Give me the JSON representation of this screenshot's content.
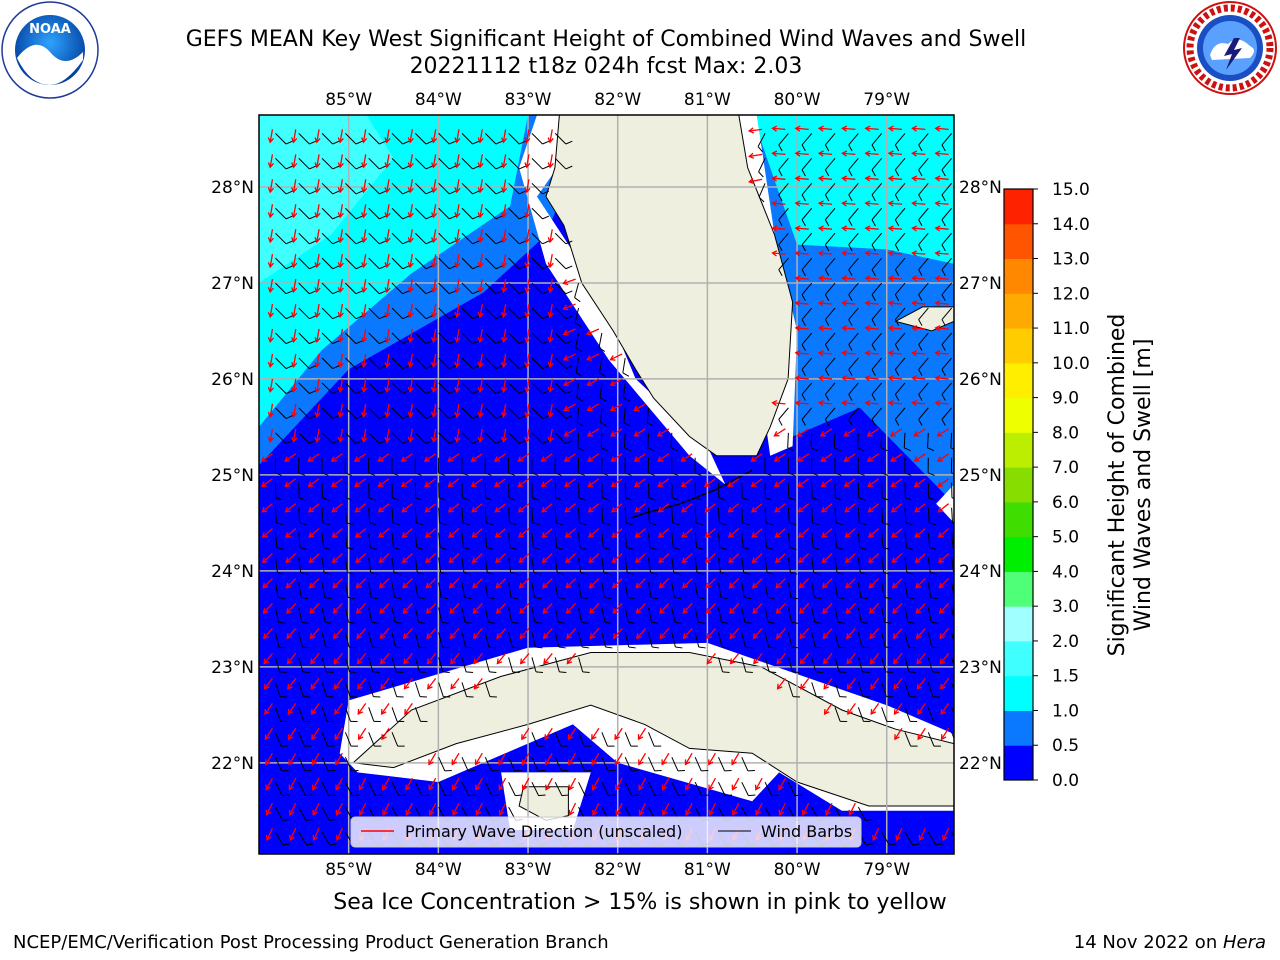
{
  "header": {
    "title_line1": "GEFS MEAN Key West Significant Height of Combined Wind Waves and Swell",
    "title_line2": "20221112 t18z 024h fcst   Max: 2.03",
    "left_logo_text": "NOAA",
    "right_logo_text": "NATIONAL WEATHER SERVICE"
  },
  "chart_data": {
    "type": "heatmap",
    "title": "GEFS MEAN Key West Significant Height of Combined Wind Waves and Swell",
    "subtitle": "20221112 t18z 024h fcst   Max: 2.03",
    "max_value": 2.03,
    "x_ticks": [
      "85°W",
      "84°W",
      "83°W",
      "82°W",
      "81°W",
      "80°W",
      "79°W"
    ],
    "y_ticks": [
      "28°N",
      "27°N",
      "26°N",
      "25°N",
      "24°N",
      "23°N",
      "22°N"
    ],
    "xlim": [
      -86.0,
      -78.25
    ],
    "ylim": [
      21.05,
      28.75
    ],
    "grid": true,
    "colorbar": {
      "label": "Significant Height of Combined Wind Waves and Swell [m]",
      "tick_labels": [
        "0.0",
        "0.5",
        "1.0",
        "1.5",
        "2.0",
        "3.0",
        "4.0",
        "5.0",
        "6.0",
        "7.0",
        "8.0",
        "9.0",
        "10.0",
        "11.0",
        "12.0",
        "13.0",
        "14.0",
        "15.0"
      ],
      "bin_colors": [
        "#0000ff",
        "#0a78ff",
        "#00ffff",
        "#40ffff",
        "#a0ffff",
        "#50ff78",
        "#00ee00",
        "#40dd00",
        "#88dd00",
        "#bbee00",
        "#eeff00",
        "#ffee00",
        "#ffcc00",
        "#ffaa00",
        "#ff8800",
        "#ff5500",
        "#ff2200"
      ]
    },
    "legend": [
      {
        "label": "Primary Wave Direction (unscaled)",
        "color": "#ff0000"
      },
      {
        "label": "Wind Barbs",
        "color": "#000000"
      }
    ],
    "legend_placement": "bottom-center"
  },
  "colors": {
    "land": "#efefdf",
    "coast_gap": "#ffffff",
    "wave_low": "#0000ff",
    "wave_mid": "#0a78ff",
    "wave_high": "#00ffff",
    "wave_higher": "#40ffff",
    "grid": "#b0b0b0",
    "arrow": "#ff0000",
    "barb": "#000000"
  },
  "note": "Sea Ice Concentration > 15% is shown in pink to yellow",
  "footer": {
    "left": "NCEP/EMC/Verification Post Processing Product Generation Branch",
    "right_date": "14 Nov 2022 on ",
    "right_machine": "Hera"
  }
}
